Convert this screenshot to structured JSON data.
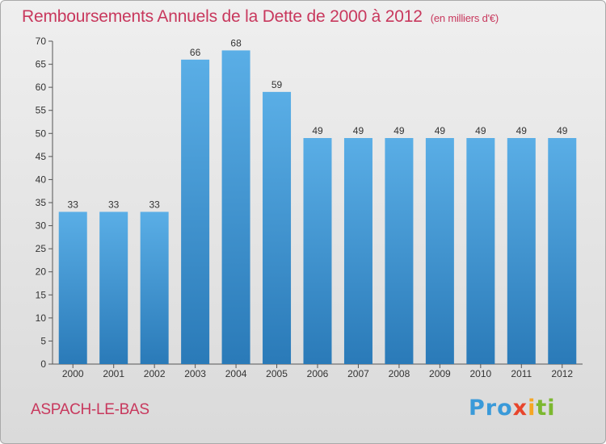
{
  "header": {
    "title": "Remboursements Annuels de la Dette de 2000 à 2012",
    "unit": "(en milliers d'€)"
  },
  "footer": {
    "commune": "ASPACH-LE-BAS",
    "logo_parts": [
      "Pro",
      "x",
      "i",
      "ti"
    ]
  },
  "colors": {
    "bar_top": "#5aaee6",
    "bar_bottom": "#2a7ab8",
    "title": "#c8385d"
  },
  "chart_data": {
    "type": "bar",
    "title": "Remboursements Annuels de la Dette de 2000 à 2012",
    "subtitle": "(en milliers d'€)",
    "xlabel": "",
    "ylabel": "",
    "categories": [
      "2000",
      "2001",
      "2002",
      "2003",
      "2004",
      "2005",
      "2006",
      "2007",
      "2008",
      "2009",
      "2010",
      "2011",
      "2012"
    ],
    "values": [
      33,
      33,
      33,
      66,
      68,
      59,
      49,
      49,
      49,
      49,
      49,
      49,
      49
    ],
    "ylim": [
      0,
      70
    ],
    "yticks": [
      0,
      5,
      10,
      15,
      20,
      25,
      30,
      35,
      40,
      45,
      50,
      55,
      60,
      65,
      70
    ],
    "grid": false,
    "data_labels": true
  }
}
